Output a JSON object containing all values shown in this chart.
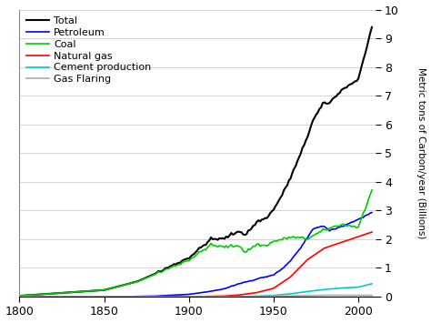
{
  "ylabel": "Metric tons of Carbon/year (Billions)",
  "xmin": 1800,
  "xmax": 2010,
  "ymin": 0,
  "ymax": 10,
  "yticks": [
    0,
    1,
    2,
    3,
    4,
    5,
    6,
    7,
    8,
    9,
    10
  ],
  "xticks": [
    1800,
    1850,
    1900,
    1950,
    2000
  ],
  "legend_labels": [
    "Total",
    "Petroleum",
    "Coal",
    "Natural gas",
    "Cement production",
    "Gas Flaring"
  ],
  "line_colors": [
    "#000000",
    "#0000ff",
    "#00cc00",
    "#ff0000",
    "#00cccc",
    "#aaaaaa"
  ],
  "line_widths": [
    1.5,
    1.2,
    1.2,
    1.2,
    1.2,
    1.2
  ],
  "background_color": "#ffffff",
  "grid_color": "#cccccc"
}
